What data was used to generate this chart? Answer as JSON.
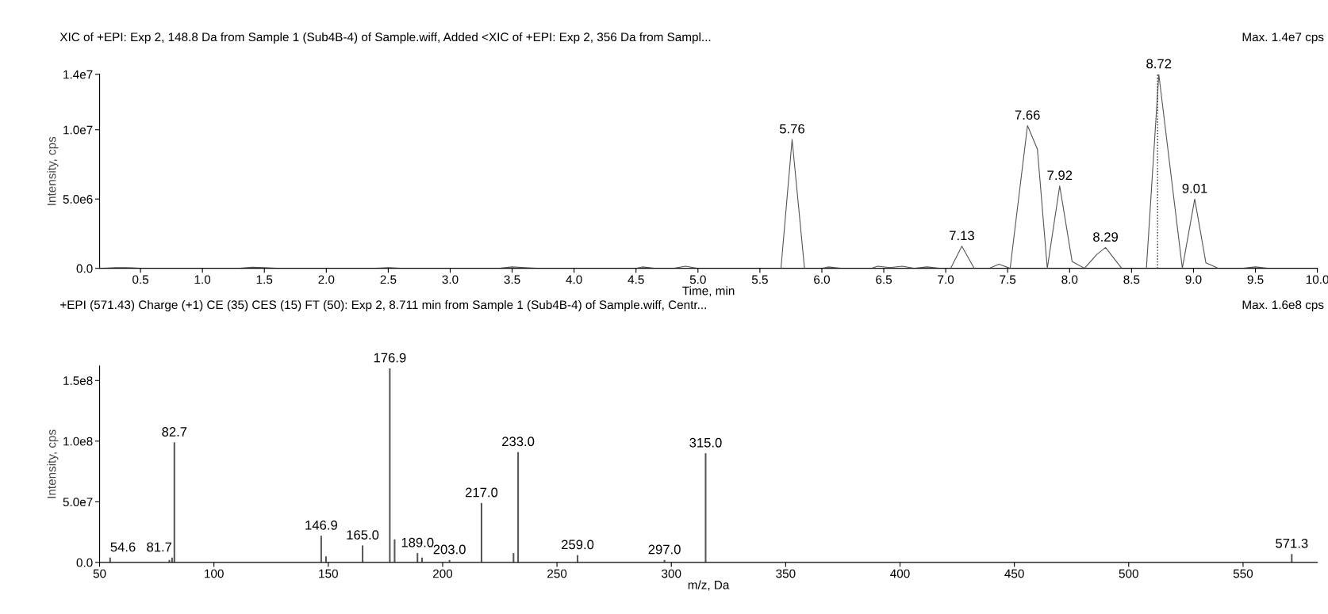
{
  "chart_data": [
    {
      "type": "line",
      "title": "XIC of +EPI: Exp 2, 148.8 Da from Sample 1 (Sub4B-4) of Sample.wiff, Added <XIC of +EPI: Exp 2, 356 Da from Sampl...",
      "xlabel": "Time, min",
      "ylabel": "Intensity, cps",
      "series": [
        {
          "color": "#555555",
          "x": [
            0.2,
            0.3,
            0.4,
            0.5,
            1.3,
            1.4,
            1.5,
            1.6,
            2.4,
            2.5,
            2.6,
            3.4,
            3.5,
            3.6,
            3.7,
            4.5,
            4.55,
            4.65,
            4.8,
            4.9,
            5.0,
            5.67,
            5.76,
            5.86,
            6.0,
            6.05,
            6.15,
            6.4,
            6.45,
            6.55,
            6.65,
            6.75,
            6.85,
            6.95,
            7.04,
            7.13,
            7.23,
            7.35,
            7.43,
            7.52,
            7.66,
            7.74,
            7.82,
            7.92,
            8.02,
            8.12,
            8.22,
            8.29,
            8.42,
            8.62,
            8.72,
            8.91,
            9.01,
            9.1,
            9.2,
            9.4,
            9.5,
            9.6,
            10.0
          ],
          "values": [
            0,
            50000,
            50000,
            0,
            0,
            80000,
            50000,
            0,
            0,
            50000,
            0,
            0,
            100000,
            50000,
            0,
            0,
            100000,
            0,
            0,
            150000,
            0,
            0,
            9300000,
            0,
            0,
            100000,
            0,
            0,
            150000,
            50000,
            150000,
            0,
            100000,
            0,
            0,
            1600000,
            0,
            0,
            300000,
            0,
            10300000,
            8600000,
            0,
            5950000,
            500000,
            0,
            1000000,
            1500000,
            0,
            0,
            14000000,
            0,
            5000000,
            400000,
            0,
            0,
            100000,
            0,
            0
          ]
        }
      ],
      "xlim": [
        0.17,
        10.0
      ],
      "ylim": [
        0,
        14000000
      ],
      "xticks": [
        0.5,
        {
          "value": 1,
          "label": "1.0"
        },
        1.5,
        {
          "value": 2,
          "label": "2.0"
        },
        2.5,
        {
          "value": 3,
          "label": "3.0"
        },
        3.5,
        {
          "value": 4,
          "label": "4.0"
        },
        4.5,
        {
          "value": 5,
          "label": "5.0"
        },
        5.5,
        {
          "value": 6,
          "label": "6.0"
        },
        6.5,
        {
          "value": 7,
          "label": "7.0"
        },
        7.5,
        {
          "value": 8,
          "label": "8.0"
        },
        8.5,
        {
          "value": 9,
          "label": "9.0"
        },
        9.5,
        {
          "value": 10,
          "label": "10.0"
        }
      ],
      "yticks": [
        {
          "value": 0,
          "label": "0.0"
        },
        {
          "value": 5000000,
          "label": "5.0e6"
        },
        {
          "value": 10000000,
          "label": "1.0e7"
        },
        {
          "value": 14000000,
          "label": "1.4e7"
        }
      ],
      "ref_lines": [
        {
          "axis": "x",
          "value": 8.71,
          "color": "#222222",
          "line_style": "dotted"
        }
      ],
      "annotations": [
        "Max. 1.4e7 cps",
        {
          "text": "5.76",
          "x": 5.76,
          "y": 9300000
        },
        {
          "text": "7.13",
          "x": 7.13,
          "y": 1600000
        },
        {
          "text": "7.66",
          "x": 7.66,
          "y": 10300000
        },
        {
          "text": "7.92",
          "x": 7.92,
          "y": 5950000
        },
        {
          "text": "8.29",
          "x": 8.29,
          "y": 1500000
        },
        {
          "text": "8.72",
          "x": 8.72,
          "y": 14000000
        },
        {
          "text": "9.01",
          "x": 9.01,
          "y": 5000000
        }
      ]
    },
    {
      "type": "bar",
      "title": "+EPI (571.43) Charge (+1) CE (35) CES (15) FT (50): Exp 2, 8.711 min from Sample 1 (Sub4B-4) of Sample.wiff, Centr...",
      "xlabel": "m/z, Da",
      "ylabel": "Intensity, cps",
      "series": [
        {
          "color": "#555555",
          "x": [
            54.6,
            80.5,
            81.7,
            82.7,
            146.9,
            149,
            165.0,
            176.9,
            179,
            189.0,
            191,
            203.0,
            217.0,
            231,
            233.0,
            259.0,
            297.0,
            315.0,
            571.3
          ],
          "values": [
            4000000,
            2000000,
            4000000,
            99000000,
            22000000,
            5000000,
            14000000,
            160000000,
            19000000,
            7700000,
            4000000,
            2000000,
            49000000,
            7700000,
            91000000,
            6000000,
            2000000,
            90000000,
            7000000
          ]
        }
      ],
      "xlim": [
        50,
        582.5
      ],
      "ylim": [
        0,
        162000000
      ],
      "xticks": [
        50,
        100,
        150,
        200,
        250,
        300,
        350,
        400,
        450,
        500,
        550
      ],
      "yticks": [
        {
          "value": 0,
          "label": "0.0"
        },
        {
          "value": 50000000,
          "label": "5.0e7"
        },
        {
          "value": 100000000,
          "label": "1.0e8"
        },
        {
          "value": 150000000,
          "label": "1.5e8"
        }
      ],
      "annotations": [
        "Max. 1.6e8 cps",
        {
          "text": "54.6",
          "x": 54.6,
          "y": 4000000
        },
        {
          "text": "81.7",
          "x": 81.7,
          "y": 4000000
        },
        {
          "text": "82.7",
          "x": 82.7,
          "y": 99000000
        },
        {
          "text": "146.9",
          "x": 146.9,
          "y": 22000000
        },
        {
          "text": "165.0",
          "x": 165.0,
          "y": 14000000
        },
        {
          "text": "176.9",
          "x": 176.9,
          "y": 160000000
        },
        {
          "text": "189.0",
          "x": 189.0,
          "y": 7700000
        },
        {
          "text": "203.0",
          "x": 203.0,
          "y": 2000000
        },
        {
          "text": "217.0",
          "x": 217.0,
          "y": 49000000
        },
        {
          "text": "233.0",
          "x": 233.0,
          "y": 91000000
        },
        {
          "text": "259.0",
          "x": 259.0,
          "y": 6000000
        },
        {
          "text": "297.0",
          "x": 297.0,
          "y": 2000000
        },
        {
          "text": "315.0",
          "x": 315.0,
          "y": 90000000
        },
        {
          "text": "571.3",
          "x": 571.3,
          "y": 7000000
        }
      ]
    }
  ]
}
